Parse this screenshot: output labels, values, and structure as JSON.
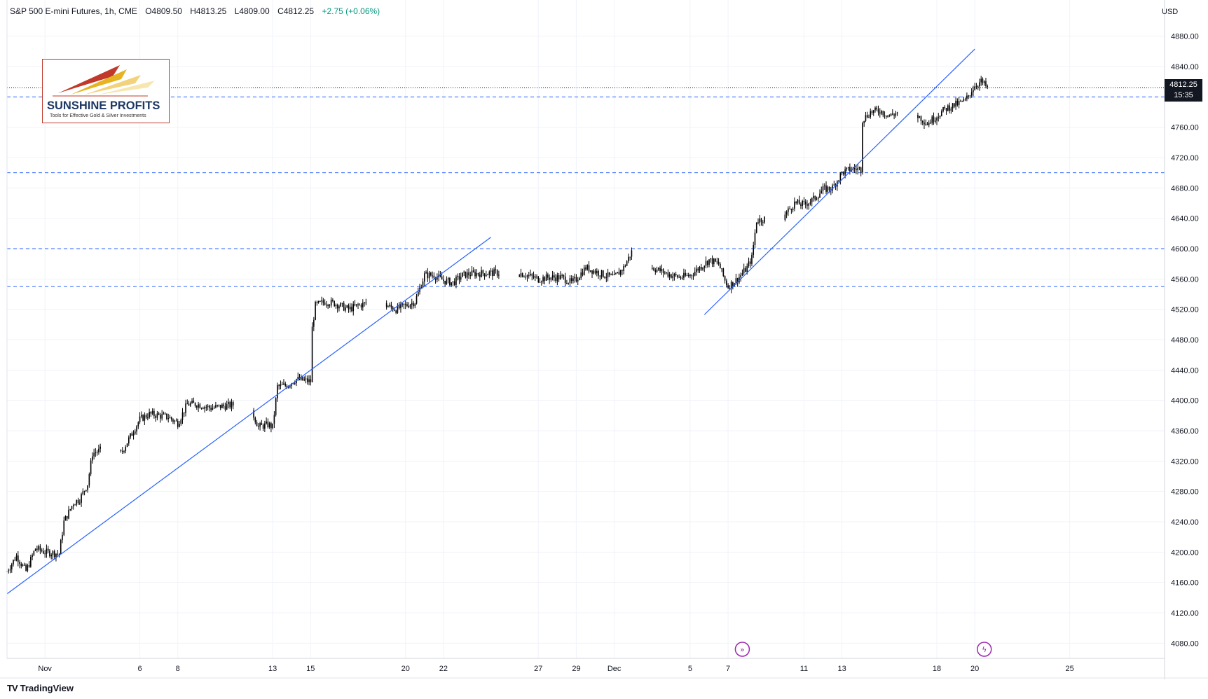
{
  "header": {
    "symbol": "S&P 500 E-mini Futures, 1h, CME",
    "open": "O4809.50",
    "high": "H4813.25",
    "low": "L4809.00",
    "close": "C4812.25",
    "change": "+2.75 (+0.06%)"
  },
  "currency": "USD",
  "last_price": {
    "value": "4812.25",
    "countdown": "15:35"
  },
  "branding": {
    "tradingview": "TradingView",
    "logo_name": "SUNSHINE PROFITS",
    "logo_tagline": "Tools for Effective Gold & Silver Investments"
  },
  "icons": [
    "tradingview-logo-icon",
    "sunshine-profits-logo-icon",
    "event-arrow-icon",
    "event-lightning-icon"
  ],
  "colors": {
    "candle": "#000000",
    "trendline": "#2962ff",
    "level_line": "#2962ff",
    "price_badge": "#131722",
    "event_icon": "#9c27b0"
  },
  "chart_data": {
    "type": "candlestick",
    "title": "S&P 500 E-mini Futures, 1h, CME",
    "interval": "1h",
    "x_start": "2023-10-30",
    "x_end": "2023-12-30",
    "x_ticks": [
      {
        "date": "2023-11-01",
        "label": "Nov"
      },
      {
        "date": "2023-11-06",
        "label": "6"
      },
      {
        "date": "2023-11-08",
        "label": "8"
      },
      {
        "date": "2023-11-13",
        "label": "13"
      },
      {
        "date": "2023-11-15",
        "label": "15"
      },
      {
        "date": "2023-11-20",
        "label": "20"
      },
      {
        "date": "2023-11-22",
        "label": "22"
      },
      {
        "date": "2023-11-27",
        "label": "27"
      },
      {
        "date": "2023-11-29",
        "label": "29"
      },
      {
        "date": "2023-12-01",
        "label": "Dec"
      },
      {
        "date": "2023-12-05",
        "label": "5"
      },
      {
        "date": "2023-12-07",
        "label": "7"
      },
      {
        "date": "2023-12-11",
        "label": "11"
      },
      {
        "date": "2023-12-13",
        "label": "13"
      },
      {
        "date": "2023-12-18",
        "label": "18"
      },
      {
        "date": "2023-12-20",
        "label": "20"
      },
      {
        "date": "2023-12-25",
        "label": "25"
      }
    ],
    "y_range": [
      4060,
      4900
    ],
    "y_ticks": [
      "4080.00",
      "4120.00",
      "4160.00",
      "4200.00",
      "4240.00",
      "4280.00",
      "4320.00",
      "4360.00",
      "4400.00",
      "4440.00",
      "4480.00",
      "4520.00",
      "4560.00",
      "4600.00",
      "4640.00",
      "4680.00",
      "4720.00",
      "4760.00",
      "4800.00",
      "4840.00",
      "4880.00"
    ],
    "grid": true,
    "price_path": [
      [
        "2023-10-30T00:00",
        4175
      ],
      [
        "2023-10-30T12:00",
        4195
      ],
      [
        "2023-10-31T00:00",
        4175
      ],
      [
        "2023-10-31T12:00",
        4205
      ],
      [
        "2023-11-01T00:00",
        4200
      ],
      [
        "2023-11-01T18:00",
        4198
      ],
      [
        "2023-11-02T00:00",
        4240
      ],
      [
        "2023-11-02T12:00",
        4265
      ],
      [
        "2023-11-02T20:00",
        4270
      ],
      [
        "2023-11-03T06:00",
        4290
      ],
      [
        "2023-11-03T12:00",
        4330
      ],
      [
        "2023-11-04T00:00",
        4335
      ],
      [
        "2023-11-05T00:00",
        4330
      ],
      [
        "2023-11-06T00:00",
        4375
      ],
      [
        "2023-11-06T12:00",
        4382
      ],
      [
        "2023-11-07T00:00",
        4380
      ],
      [
        "2023-11-07T12:00",
        4378
      ],
      [
        "2023-11-08T00:00",
        4370
      ],
      [
        "2023-11-08T12:00",
        4395
      ],
      [
        "2023-11-09T00:00",
        4395
      ],
      [
        "2023-11-09T18:00",
        4390
      ],
      [
        "2023-11-10T06:00",
        4392
      ],
      [
        "2023-11-11T06:00",
        4395
      ],
      [
        "2023-11-12T00:00",
        4380
      ],
      [
        "2023-11-12T06:00",
        4365
      ],
      [
        "2023-11-12T18:00",
        4368
      ],
      [
        "2023-11-13T00:00",
        4365
      ],
      [
        "2023-11-13T06:00",
        4418
      ],
      [
        "2023-11-13T18:00",
        4420
      ],
      [
        "2023-11-14T06:00",
        4428
      ],
      [
        "2023-11-15T00:00",
        4425
      ],
      [
        "2023-11-15T02:00",
        4495
      ],
      [
        "2023-11-15T06:00",
        4525
      ],
      [
        "2023-11-15T18:00",
        4530
      ],
      [
        "2023-11-16T06:00",
        4528
      ],
      [
        "2023-11-17T00:00",
        4520
      ],
      [
        "2023-11-17T12:00",
        4525
      ],
      [
        "2023-11-18T06:00",
        4530
      ],
      [
        "2023-11-19T00:00",
        4525
      ],
      [
        "2023-11-19T12:00",
        4520
      ],
      [
        "2023-11-20T00:00",
        4525
      ],
      [
        "2023-11-20T12:00",
        4530
      ],
      [
        "2023-11-21T00:00",
        4565
      ],
      [
        "2023-11-21T12:00",
        4565
      ],
      [
        "2023-11-22T00:00",
        4558
      ],
      [
        "2023-11-22T12:00",
        4555
      ],
      [
        "2023-11-23T00:00",
        4565
      ],
      [
        "2023-11-23T12:00",
        4567
      ],
      [
        "2023-11-24T12:00",
        4568
      ],
      [
        "2023-11-26T00:00",
        4568
      ],
      [
        "2023-11-27T00:00",
        4560
      ],
      [
        "2023-11-27T12:00",
        4562
      ],
      [
        "2023-11-28T06:00",
        4562
      ],
      [
        "2023-11-28T18:00",
        4555
      ],
      [
        "2023-11-29T00:00",
        4560
      ],
      [
        "2023-11-29T12:00",
        4575
      ],
      [
        "2023-11-30T00:00",
        4570
      ],
      [
        "2023-11-30T12:00",
        4565
      ],
      [
        "2023-12-01T00:00",
        4562
      ],
      [
        "2023-12-01T12:00",
        4575
      ],
      [
        "2023-12-02T00:00",
        4600
      ],
      [
        "2023-12-02T12:00",
        4585
      ],
      [
        "2023-12-03T00:00",
        4575
      ],
      [
        "2023-12-03T12:00",
        4570
      ],
      [
        "2023-12-04T00:00",
        4565
      ],
      [
        "2023-12-04T12:00",
        4562
      ],
      [
        "2023-12-05T00:00",
        4565
      ],
      [
        "2023-12-05T12:00",
        4575
      ],
      [
        "2023-12-06T00:00",
        4585
      ],
      [
        "2023-12-06T12:00",
        4580
      ],
      [
        "2023-12-06T20:00",
        4558
      ],
      [
        "2023-12-07T00:00",
        4550
      ],
      [
        "2023-12-07T12:00",
        4560
      ],
      [
        "2023-12-08T00:00",
        4575
      ],
      [
        "2023-12-08T06:00",
        4588
      ],
      [
        "2023-12-08T12:00",
        4637
      ],
      [
        "2023-12-09T00:00",
        4640
      ],
      [
        "2023-12-09T12:00",
        4630
      ],
      [
        "2023-12-10T00:00",
        4645
      ],
      [
        "2023-12-10T12:00",
        4660
      ],
      [
        "2023-12-11T00:00",
        4658
      ],
      [
        "2023-12-11T12:00",
        4665
      ],
      [
        "2023-12-12T00:00",
        4678
      ],
      [
        "2023-12-12T12:00",
        4680
      ],
      [
        "2023-12-13T00:00",
        4700
      ],
      [
        "2023-12-13T12:00",
        4705
      ],
      [
        "2023-12-14T00:00",
        4705
      ],
      [
        "2023-12-14T02:00",
        4770
      ],
      [
        "2023-12-14T12:00",
        4780
      ],
      [
        "2023-12-15T00:00",
        4782
      ],
      [
        "2023-12-15T12:00",
        4775
      ],
      [
        "2023-12-16T00:00",
        4780
      ],
      [
        "2023-12-16T12:00",
        4785
      ],
      [
        "2023-12-17T00:00",
        4775
      ],
      [
        "2023-12-17T12:00",
        4765
      ],
      [
        "2023-12-18T00:00",
        4775
      ],
      [
        "2023-12-18T12:00",
        4785
      ],
      [
        "2023-12-19T00:00",
        4790
      ],
      [
        "2023-12-19T12:00",
        4795
      ],
      [
        "2023-12-20T00:00",
        4815
      ],
      [
        "2023-12-20T08:00",
        4820
      ],
      [
        "2023-12-20T16:00",
        4812
      ]
    ],
    "trendlines": [
      {
        "start": [
          "2023-10-30T00:00",
          4145
        ],
        "end": [
          "2023-11-24T12:00",
          4615
        ]
      },
      {
        "start": [
          "2023-12-05T18:00",
          4513
        ],
        "end": [
          "2023-12-20T00:00",
          4863
        ]
      }
    ],
    "levels": [
      4800,
      4700,
      4600,
      4550
    ],
    "last_price_line": 4812.25,
    "events": [
      {
        "date": "2023-12-07T18:00",
        "icon": "event-arrow-icon"
      },
      {
        "date": "2023-12-20T12:00",
        "icon": "event-lightning-icon"
      }
    ]
  }
}
